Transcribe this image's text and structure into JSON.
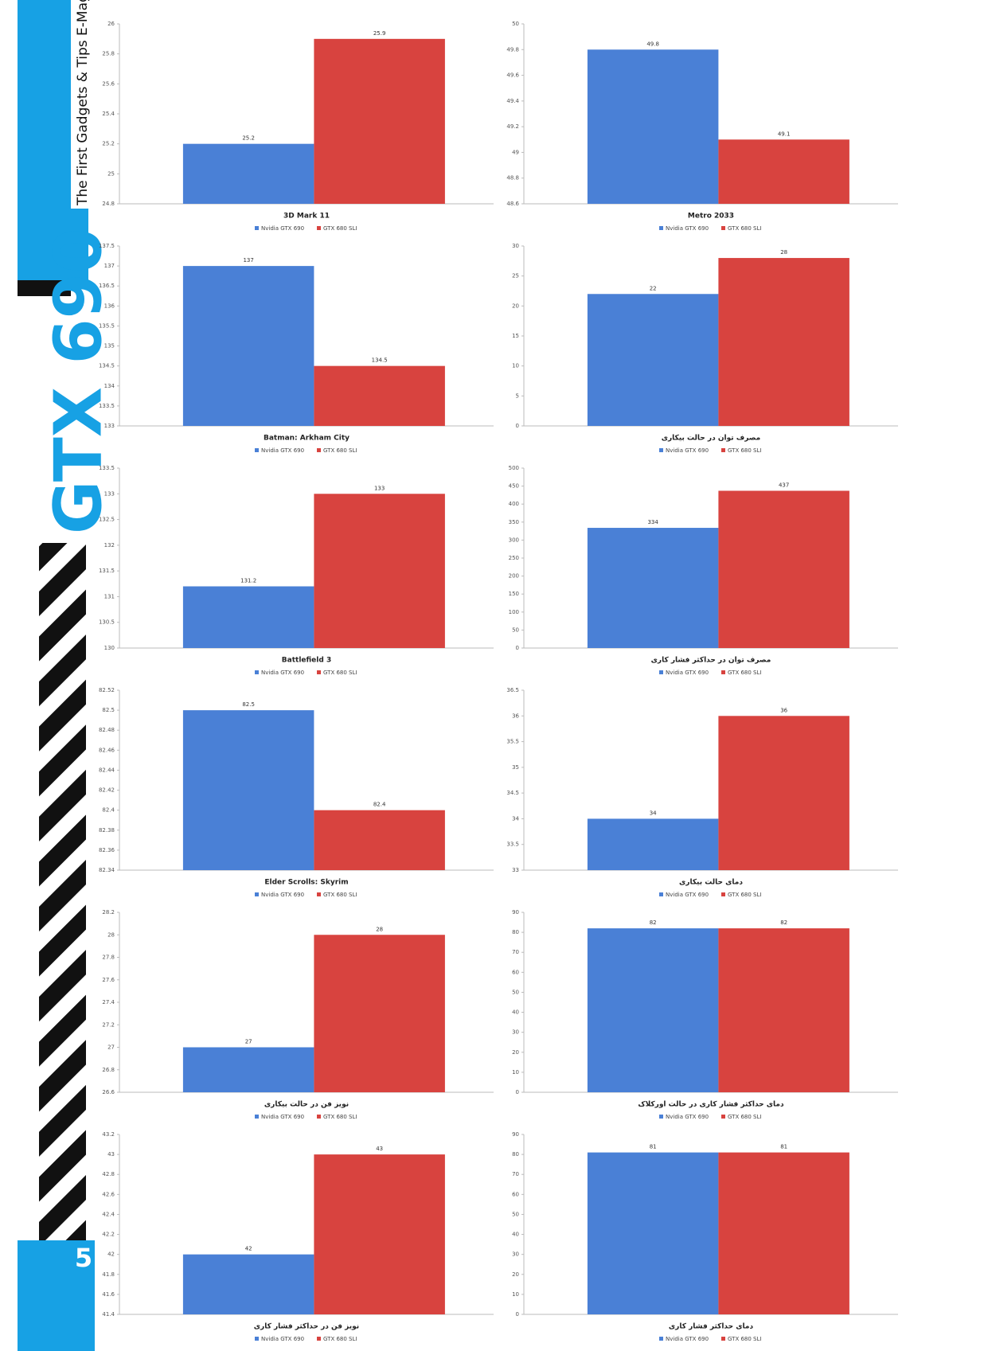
{
  "sidebar": {
    "tagline": "The First Gadgets & Tips E-Mag",
    "title": "GTX 690",
    "page_number": "5"
  },
  "chart_data": [
    {
      "type": "bar",
      "categories": [
        "3D Mark 11"
      ],
      "ylim": [
        24.8,
        26
      ],
      "yticks": [
        24.8,
        25,
        25.2,
        25.4,
        25.6,
        25.8,
        26
      ],
      "series": [
        {
          "name": "Nvidia GTX 690",
          "color": "#4a80d6",
          "values": [
            25.2
          ]
        },
        {
          "name": "GTX 680 SLI",
          "color": "#d8433f",
          "values": [
            25.9
          ]
        }
      ]
    },
    {
      "type": "bar",
      "categories": [
        "Metro 2033"
      ],
      "ylim": [
        48.6,
        50
      ],
      "yticks": [
        48.6,
        48.8,
        49,
        49.2,
        49.4,
        49.6,
        49.8,
        50
      ],
      "series": [
        {
          "name": "Nvidia GTX 690",
          "color": "#4a80d6",
          "values": [
            49.8
          ]
        },
        {
          "name": "GTX 680 SLI",
          "color": "#d8433f",
          "values": [
            49.1
          ]
        }
      ]
    },
    {
      "type": "bar",
      "categories": [
        "Batman: Arkham City"
      ],
      "ylim": [
        133,
        137.5
      ],
      "yticks": [
        133,
        133.5,
        134,
        134.5,
        135,
        135.5,
        136,
        136.5,
        137,
        137.5
      ],
      "series": [
        {
          "name": "Nvidia GTX 690",
          "color": "#4a80d6",
          "values": [
            137
          ]
        },
        {
          "name": "GTX 680 SLI",
          "color": "#d8433f",
          "values": [
            134.5
          ]
        }
      ]
    },
    {
      "type": "bar",
      "categories": [
        "مصرف توان در حالت بیکاری"
      ],
      "ylim": [
        0,
        30
      ],
      "yticks": [
        0,
        5,
        10,
        15,
        20,
        25,
        30
      ],
      "series": [
        {
          "name": "Nvidia GTX 690",
          "color": "#4a80d6",
          "values": [
            22
          ]
        },
        {
          "name": "GTX 680 SLI",
          "color": "#d8433f",
          "values": [
            28
          ]
        }
      ]
    },
    {
      "type": "bar",
      "categories": [
        "Battlefield 3"
      ],
      "ylim": [
        130,
        133.5
      ],
      "yticks": [
        130,
        130.5,
        131,
        131.5,
        132,
        132.5,
        133,
        133.5
      ],
      "series": [
        {
          "name": "Nvidia GTX 690",
          "color": "#4a80d6",
          "values": [
            131.2
          ]
        },
        {
          "name": "GTX 680 SLI",
          "color": "#d8433f",
          "values": [
            133
          ]
        }
      ]
    },
    {
      "type": "bar",
      "categories": [
        "مصرف توان در حداکثر فشار کاری"
      ],
      "ylim": [
        0,
        500
      ],
      "yticks": [
        0,
        50,
        100,
        150,
        200,
        250,
        300,
        350,
        400,
        450,
        500
      ],
      "series": [
        {
          "name": "Nvidia GTX 690",
          "color": "#4a80d6",
          "values": [
            334
          ]
        },
        {
          "name": "GTX 680 SLI",
          "color": "#d8433f",
          "values": [
            437
          ]
        }
      ]
    },
    {
      "type": "bar",
      "categories": [
        "Elder Scrolls: Skyrim"
      ],
      "ylim": [
        82.34,
        82.52
      ],
      "yticks": [
        82.34,
        82.36,
        82.38,
        82.4,
        82.42,
        82.44,
        82.46,
        82.48,
        82.5,
        82.52
      ],
      "series": [
        {
          "name": "Nvidia GTX 690",
          "color": "#4a80d6",
          "values": [
            82.5
          ]
        },
        {
          "name": "GTX 680 SLI",
          "color": "#d8433f",
          "values": [
            82.4
          ]
        }
      ]
    },
    {
      "type": "bar",
      "categories": [
        "دمای حالت بیکاری"
      ],
      "ylim": [
        33,
        36.5
      ],
      "yticks": [
        33,
        33.5,
        34,
        34.5,
        35,
        35.5,
        36,
        36.5
      ],
      "series": [
        {
          "name": "Nvidia GTX 690",
          "color": "#4a80d6",
          "values": [
            34
          ]
        },
        {
          "name": "GTX 680 SLI",
          "color": "#d8433f",
          "values": [
            36
          ]
        }
      ]
    },
    {
      "type": "bar",
      "categories": [
        "نویز فن در حالت بیکاری"
      ],
      "ylim": [
        26.6,
        28.2
      ],
      "yticks": [
        26.6,
        26.8,
        27,
        27.2,
        27.4,
        27.6,
        27.8,
        28,
        28.2
      ],
      "series": [
        {
          "name": "Nvidia GTX 690",
          "color": "#4a80d6",
          "values": [
            27
          ]
        },
        {
          "name": "GTX 680 SLI",
          "color": "#d8433f",
          "values": [
            28
          ]
        }
      ]
    },
    {
      "type": "bar",
      "categories": [
        "دمای حداکثر فشار کاری در حالت اورکلاک"
      ],
      "ylim": [
        0,
        90
      ],
      "yticks": [
        0,
        10,
        20,
        30,
        40,
        50,
        60,
        70,
        80,
        90
      ],
      "series": [
        {
          "name": "Nvidia GTX 690",
          "color": "#4a80d6",
          "values": [
            82
          ]
        },
        {
          "name": "GTX 680 SLI",
          "color": "#d8433f",
          "values": [
            82
          ]
        }
      ]
    },
    {
      "type": "bar",
      "categories": [
        "نویز فن در حداکثر فشار کاری"
      ],
      "ylim": [
        41.4,
        43.2
      ],
      "yticks": [
        41.4,
        41.6,
        41.8,
        42,
        42.2,
        42.4,
        42.6,
        42.8,
        43,
        43.2
      ],
      "series": [
        {
          "name": "Nvidia GTX 690",
          "color": "#4a80d6",
          "values": [
            42
          ]
        },
        {
          "name": "GTX 680 SLI",
          "color": "#d8433f",
          "values": [
            43
          ]
        }
      ]
    },
    {
      "type": "bar",
      "categories": [
        "دمای حداکثر فشار کاری"
      ],
      "ylim": [
        0,
        90
      ],
      "yticks": [
        0,
        10,
        20,
        30,
        40,
        50,
        60,
        70,
        80,
        90
      ],
      "series": [
        {
          "name": "Nvidia GTX 690",
          "color": "#4a80d6",
          "values": [
            81
          ]
        },
        {
          "name": "GTX 680 SLI",
          "color": "#d8433f",
          "values": [
            81
          ]
        }
      ]
    }
  ]
}
